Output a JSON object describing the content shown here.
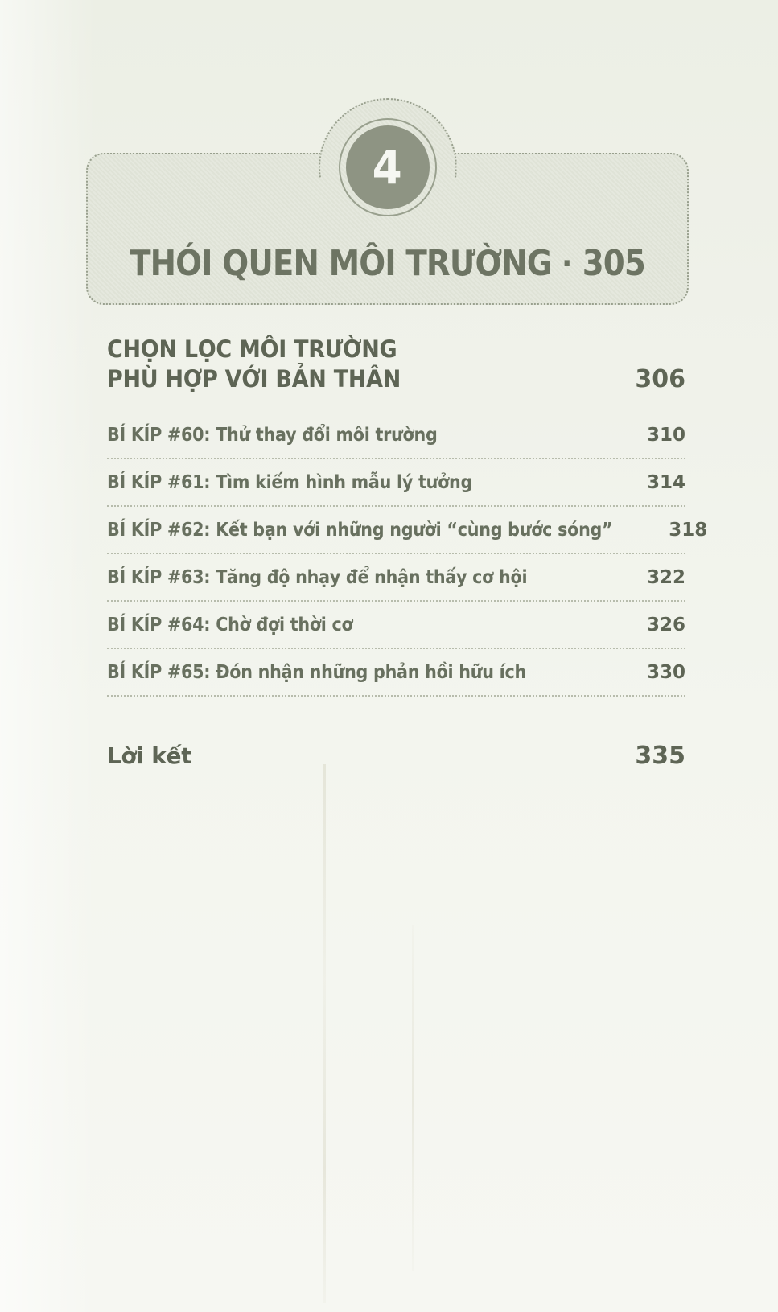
{
  "chapter": {
    "number": "4",
    "title": "THÓI QUEN MÔI TRƯỜNG",
    "separator": "·",
    "page": "305"
  },
  "toc": {
    "section": {
      "line1": "CHỌN LỌC MÔI TRƯỜNG",
      "line2": "PHÙ HỢP VỚI BẢN THÂN",
      "page": "306"
    },
    "entries": [
      {
        "label": "BÍ KÍP #60: Thử thay đổi môi trường",
        "page": "310"
      },
      {
        "label": "BÍ KÍP #61: Tìm kiếm hình mẫu lý tưởng",
        "page": "314"
      },
      {
        "label": "BÍ KÍP #62: Kết bạn với những người “cùng bước sóng”",
        "page": "318"
      },
      {
        "label": "BÍ KÍP #63: Tăng độ nhạy để nhận thấy cơ hội",
        "page": "322"
      },
      {
        "label": "BÍ KÍP #64: Chờ đợi thời cơ",
        "page": "326"
      },
      {
        "label": "BÍ KÍP #65: Đón nhận những phản hồi hữu ích",
        "page": "330"
      }
    ],
    "closing": {
      "label": "Lời kết",
      "page": "335"
    }
  },
  "colors": {
    "page_bg": "#f0f2ea",
    "box_bg": "#e5e8de",
    "box_border": "#99a08e",
    "circle_fill": "#8e9483",
    "text": "#5e6555",
    "divider": "#b7bcac"
  }
}
